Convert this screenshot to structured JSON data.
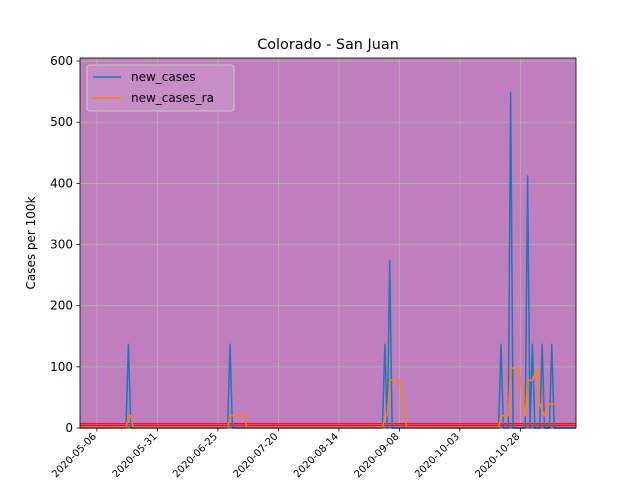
{
  "chart_data": {
    "type": "line",
    "title": "Colorado - San Juan",
    "ylabel": "Cases per 100k",
    "xlabel": "",
    "x_type": "date",
    "xlim": [
      "2020-04-29",
      "2020-11-20"
    ],
    "ylim": [
      0,
      605
    ],
    "x_ticks": [
      "2020-05-06",
      "2020-05-31",
      "2020-06-25",
      "2020-07-20",
      "2020-08-14",
      "2020-09-08",
      "2020-10-03",
      "2020-10-28"
    ],
    "y_ticks": [
      0,
      100,
      200,
      300,
      400,
      500,
      600
    ],
    "grid": true,
    "legend_position": "top-left",
    "background_color": "#bf7fbf",
    "threshold_color": "#ff0000",
    "threshold_values": [
      4,
      7
    ],
    "series": [
      {
        "name": "new_cases",
        "color": "#1f77b4",
        "points": [
          [
            "2020-04-29",
            0
          ],
          [
            "2020-05-18",
            0
          ],
          [
            "2020-05-19",
            137
          ],
          [
            "2020-05-20",
            0
          ],
          [
            "2020-06-29",
            0
          ],
          [
            "2020-06-30",
            137
          ],
          [
            "2020-07-01",
            0
          ],
          [
            "2020-09-01",
            0
          ],
          [
            "2020-09-02",
            137
          ],
          [
            "2020-09-03",
            0
          ],
          [
            "2020-09-04",
            274
          ],
          [
            "2020-09-05",
            0
          ],
          [
            "2020-10-19",
            0
          ],
          [
            "2020-10-20",
            137
          ],
          [
            "2020-10-21",
            0
          ],
          [
            "2020-10-23",
            0
          ],
          [
            "2020-10-24",
            549
          ],
          [
            "2020-10-25",
            0
          ],
          [
            "2020-10-30",
            0
          ],
          [
            "2020-10-31",
            412
          ],
          [
            "2020-11-01",
            0
          ],
          [
            "2020-11-02",
            137
          ],
          [
            "2020-11-03",
            0
          ],
          [
            "2020-11-05",
            0
          ],
          [
            "2020-11-06",
            137
          ],
          [
            "2020-11-07",
            0
          ],
          [
            "2020-11-09",
            0
          ],
          [
            "2020-11-10",
            137
          ],
          [
            "2020-11-11",
            0
          ],
          [
            "2020-11-20",
            0
          ]
        ]
      },
      {
        "name": "new_cases_ra",
        "color": "#ff7f0e",
        "points": [
          [
            "2020-04-29",
            0
          ],
          [
            "2020-05-18",
            0
          ],
          [
            "2020-05-19",
            20
          ],
          [
            "2020-05-20",
            20
          ],
          [
            "2020-05-21",
            0
          ],
          [
            "2020-06-29",
            0
          ],
          [
            "2020-06-30",
            20
          ],
          [
            "2020-07-06",
            20
          ],
          [
            "2020-07-07",
            0
          ],
          [
            "2020-09-01",
            0
          ],
          [
            "2020-09-02",
            20
          ],
          [
            "2020-09-03",
            20
          ],
          [
            "2020-09-04",
            78
          ],
          [
            "2020-09-08",
            78
          ],
          [
            "2020-09-09",
            59
          ],
          [
            "2020-09-10",
            39
          ],
          [
            "2020-09-11",
            0
          ],
          [
            "2020-10-19",
            0
          ],
          [
            "2020-10-20",
            20
          ],
          [
            "2020-10-23",
            20
          ],
          [
            "2020-10-24",
            98
          ],
          [
            "2020-10-27",
            98
          ],
          [
            "2020-10-28",
            78
          ],
          [
            "2020-10-30",
            20
          ],
          [
            "2020-10-31",
            78
          ],
          [
            "2020-11-02",
            78
          ],
          [
            "2020-11-04",
            98
          ],
          [
            "2020-11-05",
            39
          ],
          [
            "2020-11-07",
            20
          ],
          [
            "2020-11-08",
            39
          ],
          [
            "2020-11-12",
            39
          ]
        ]
      }
    ]
  }
}
